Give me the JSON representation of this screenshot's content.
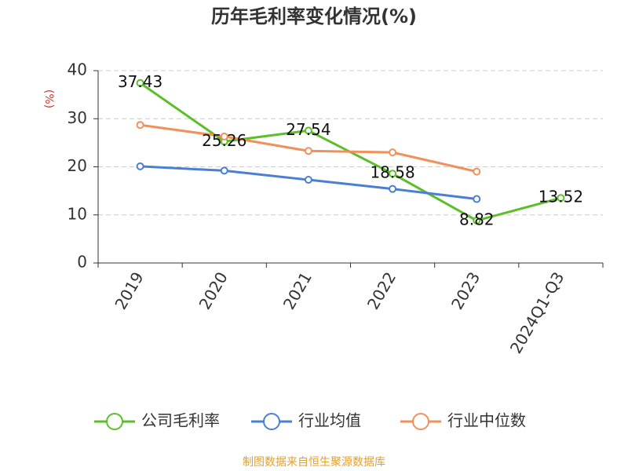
{
  "chart_data": {
    "type": "line",
    "title": "历年毛利率变化情况(%)",
    "y_label": "(%)",
    "source": "制图数据来自恒生聚源数据库",
    "categories": [
      "2019",
      "2020",
      "2021",
      "2022",
      "2023",
      "2024Q1-Q3"
    ],
    "series": [
      {
        "name": "公司毛利率",
        "color": "#5cbf2a",
        "values": [
          37.43,
          25.26,
          27.54,
          18.58,
          8.82,
          13.52
        ],
        "show_labels": true
      },
      {
        "name": "行业均值",
        "color": "#4a7fd4",
        "values": [
          20.1,
          19.2,
          17.3,
          15.4,
          13.3,
          null
        ]
      },
      {
        "name": "行业中位数",
        "color": "#f0905a",
        "values": [
          28.7,
          26.3,
          23.3,
          23.0,
          19.0,
          null
        ]
      }
    ],
    "ylim": [
      0,
      40
    ],
    "yticks": [
      0,
      10,
      20,
      30,
      40
    ],
    "grid": true
  }
}
